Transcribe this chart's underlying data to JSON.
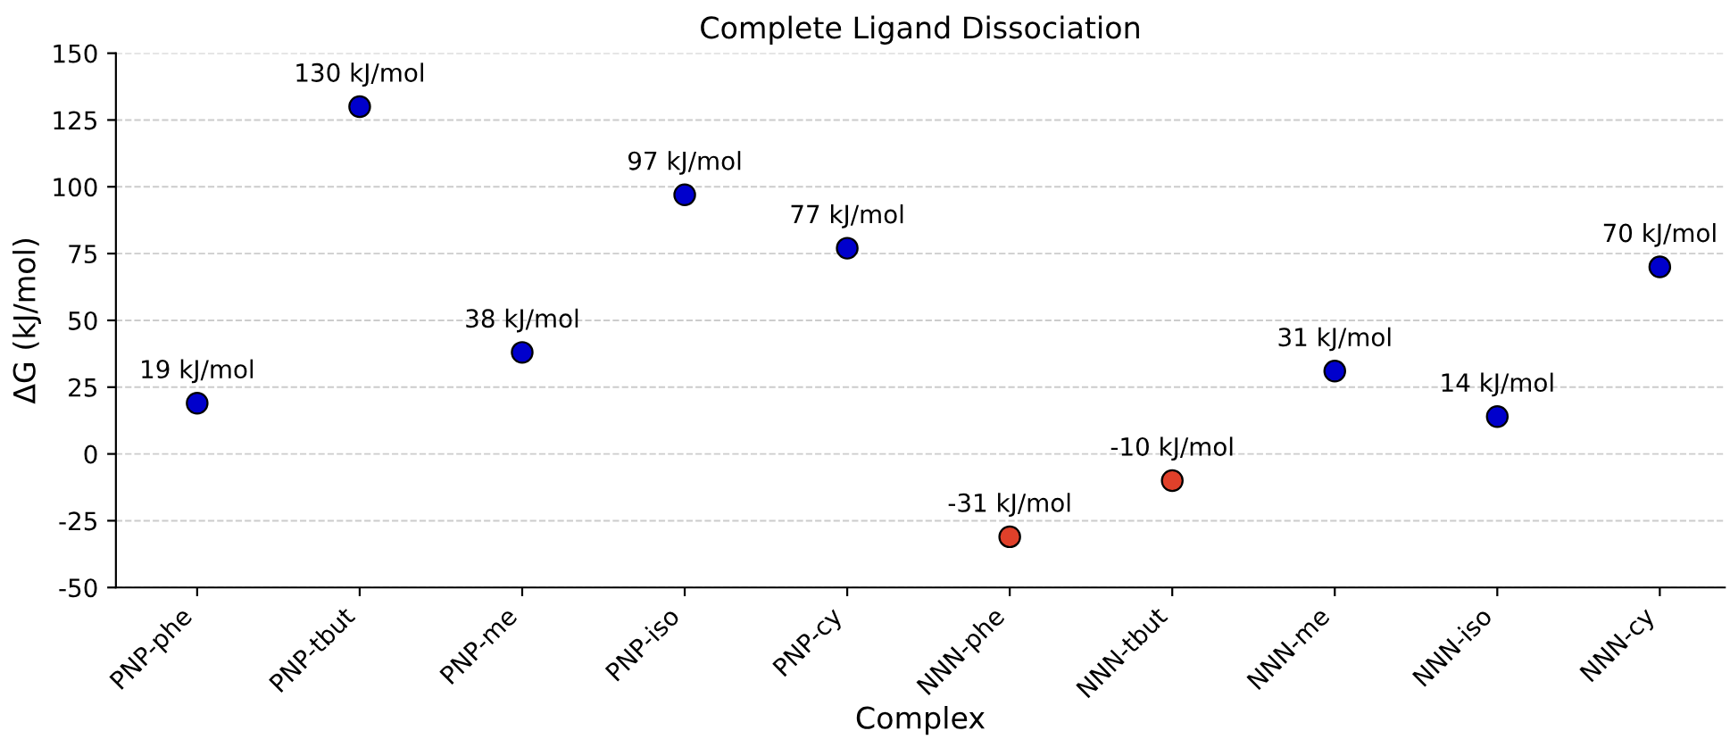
{
  "chart_data": {
    "type": "scatter",
    "title": "Complete Ligand Dissociation",
    "xlabel": "Complex",
    "ylabel": "ΔG (kJ/mol)",
    "categories": [
      "PNP-phe",
      "PNP-tbut",
      "PNP-me",
      "PNP-iso",
      "PNP-cy",
      "NNN-phe",
      "NNN-tbut",
      "NNN-me",
      "NNN-iso",
      "NNN-cy"
    ],
    "values": [
      19,
      130,
      38,
      97,
      77,
      -31,
      -10,
      31,
      14,
      70
    ],
    "colors": [
      "#0000cc",
      "#0000cc",
      "#0000cc",
      "#0000cc",
      "#0000cc",
      "#e0402a",
      "#e0402a",
      "#0000cc",
      "#0000cc",
      "#0000cc"
    ],
    "value_labels": [
      "19 kJ/mol",
      "130 kJ/mol",
      "38 kJ/mol",
      "97 kJ/mol",
      "77 kJ/mol",
      "-31 kJ/mol",
      "-10 kJ/mol",
      "31 kJ/mol",
      "14 kJ/mol",
      "70 kJ/mol"
    ],
    "ylim": [
      -50,
      150
    ],
    "yticks": [
      -50,
      -25,
      0,
      25,
      50,
      75,
      100,
      125,
      150
    ],
    "grid": "y",
    "marker": "circle"
  }
}
